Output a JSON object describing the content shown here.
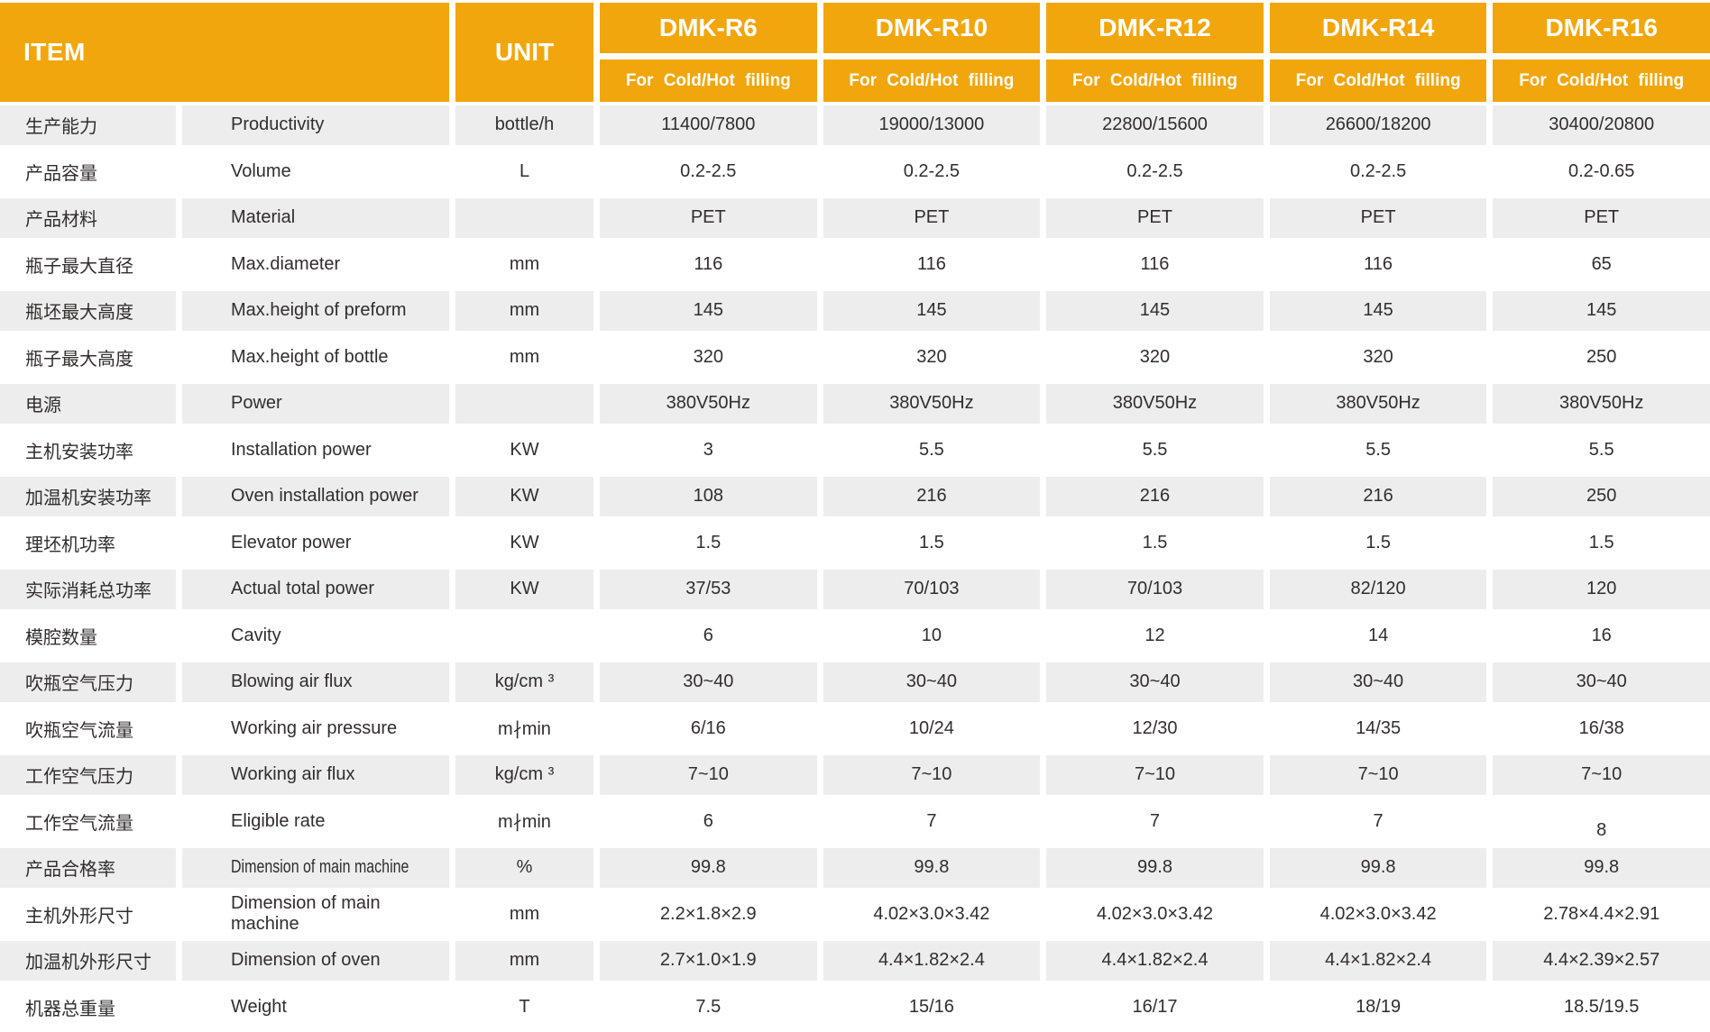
{
  "colors": {
    "accent_orange": "#F2A60D",
    "row_gray": "#EDEDED",
    "header_text": "#FFFFFF",
    "body_text": "#322D2D"
  },
  "header": {
    "item_label": "ITEM",
    "unit_label": "UNIT",
    "models": [
      {
        "name": "DMK-R6",
        "subtitle": "For Cold/Hot filling"
      },
      {
        "name": "DMK-R10",
        "subtitle": "For Cold/Hot filling"
      },
      {
        "name": "DMK-R12",
        "subtitle": "For Cold/Hot filling"
      },
      {
        "name": "DMK-R14",
        "subtitle": "For Cold/Hot filling"
      },
      {
        "name": "DMK-R16",
        "subtitle": "For Cold/Hot filling"
      }
    ]
  },
  "rows": [
    {
      "cn": "生产能力",
      "en": "Productivity",
      "unit": "bottle/h",
      "values": [
        "11400/7800",
        "19000/13000",
        "22800/15600",
        "26600/18200",
        "30400/20800"
      ]
    },
    {
      "cn": "产品容量",
      "en": "Volume",
      "unit": "L",
      "values": [
        "0.2-2.5",
        "0.2-2.5",
        "0.2-2.5",
        "0.2-2.5",
        "0.2-0.65"
      ]
    },
    {
      "cn": "产品材料",
      "en": "Material",
      "unit": "",
      "values": [
        "PET",
        "PET",
        "PET",
        "PET",
        "PET"
      ]
    },
    {
      "cn": "瓶子最大直径",
      "en": "Max.diameter",
      "unit": "mm",
      "values": [
        "116",
        "116",
        "116",
        "116",
        "65"
      ]
    },
    {
      "cn": "瓶坯最大高度",
      "en": "Max.height of preform",
      "unit": "mm",
      "values": [
        "145",
        "145",
        "145",
        "145",
        "145"
      ]
    },
    {
      "cn": "瓶子最大高度",
      "en": "Max.height of bottle",
      "unit": "mm",
      "values": [
        "320",
        "320",
        "320",
        "320",
        "250"
      ]
    },
    {
      "cn": "电源",
      "en": "Power",
      "unit": "",
      "values": [
        "380V50Hz",
        "380V50Hz",
        "380V50Hz",
        "380V50Hz",
        "380V50Hz"
      ]
    },
    {
      "cn": "主机安装功率",
      "en": "Installation power",
      "unit": "KW",
      "values": [
        "3",
        "5.5",
        "5.5",
        "5.5",
        "5.5"
      ]
    },
    {
      "cn": "加温机安装功率",
      "en": "Oven installation power",
      "unit": "KW",
      "values": [
        "108",
        "216",
        "216",
        "216",
        "250"
      ]
    },
    {
      "cn": "理坯机功率",
      "en": "Elevator power",
      "unit": "KW",
      "values": [
        "1.5",
        "1.5",
        "1.5",
        "1.5",
        "1.5"
      ]
    },
    {
      "cn": "实际消耗总功率",
      "en": "Actual total power",
      "unit": "KW",
      "values": [
        "37/53",
        "70/103",
        "70/103",
        "82/120",
        "120"
      ]
    },
    {
      "cn": "模腔数量",
      "en": "Cavity",
      "unit": "",
      "values": [
        "6",
        "10",
        "12",
        "14",
        "16"
      ]
    },
    {
      "cn": "吹瓶空气压力",
      "en": "Blowing air flux",
      "unit": "kg/cm ³",
      "values": [
        "30~40",
        "30~40",
        "30~40",
        "30~40",
        "30~40"
      ]
    },
    {
      "cn": "吹瓶空气流量",
      "en": "Working air pressure",
      "unit": "m∤min",
      "values": [
        "6/16",
        "10/24",
        "12/30",
        "14/35",
        "16/38"
      ]
    },
    {
      "cn": "工作空气压力",
      "en": "Working air flux",
      "unit": "kg/cm ³",
      "values": [
        "7~10",
        "7~10",
        "7~10",
        "7~10",
        "7~10"
      ]
    },
    {
      "cn": "工作空气流量",
      "en": "Eligible rate",
      "unit": "m∤min",
      "values": [
        "6",
        "7",
        "7",
        "7",
        "8"
      ],
      "shifted_value_index": 4
    },
    {
      "cn": "产品合格率",
      "en": "Dimension of main machine",
      "unit": "%",
      "values": [
        "99.8",
        "99.8",
        "99.8",
        "99.8",
        "99.8"
      ],
      "condensed_en": true
    },
    {
      "cn": "主机外形尺寸",
      "en": "Dimension of main machine",
      "unit": "mm",
      "values": [
        "2.2×1.8×2.9",
        "4.02×3.0×3.42",
        "4.02×3.0×3.42",
        "4.02×3.0×3.42",
        "2.78×4.4×2.91"
      ]
    },
    {
      "cn": "加温机外形尺寸",
      "en": "Dimension of oven",
      "unit": "mm",
      "values": [
        "2.7×1.0×1.9",
        "4.4×1.82×2.4",
        "4.4×1.82×2.4",
        "4.4×1.82×2.4",
        "4.4×2.39×2.57"
      ]
    },
    {
      "cn": "机器总重量",
      "en": "Weight",
      "unit": "T",
      "values": [
        "7.5",
        "15/16",
        "16/17",
        "18/19",
        "18.5/19.5"
      ]
    }
  ]
}
